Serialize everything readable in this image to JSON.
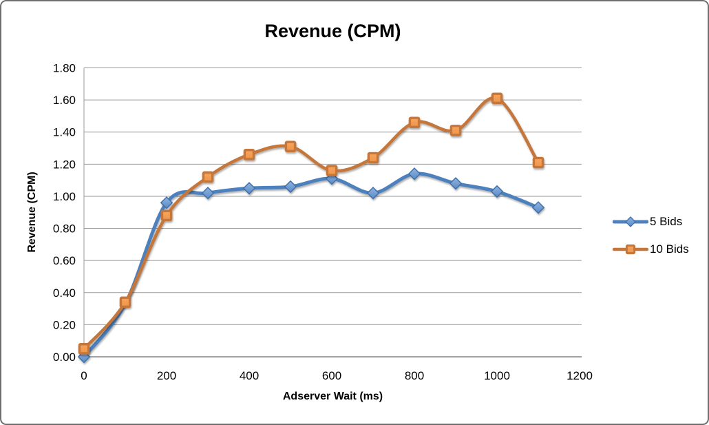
{
  "chart_data": {
    "type": "line",
    "title": "Revenue (CPM)",
    "xlabel": "Adserver Wait (ms)",
    "ylabel": "Revenue (CPM)",
    "x": [
      0,
      100,
      200,
      300,
      400,
      500,
      600,
      700,
      800,
      900,
      1000,
      1100
    ],
    "series": [
      {
        "name": "5 Bids",
        "marker": "diamond",
        "line_color": "#4e81bd",
        "marker_fill_light": "#8fb4e3",
        "marker_fill_dark": "#5b8ac5",
        "marker_stroke": "#3d6da6",
        "line_width": 5,
        "values": [
          0.0,
          0.33,
          0.96,
          1.02,
          1.05,
          1.06,
          1.11,
          1.02,
          1.14,
          1.08,
          1.03,
          0.93
        ]
      },
      {
        "name": "10 Bids",
        "marker": "square",
        "line_color": "#c4763b",
        "marker_fill_light": "#f7a55e",
        "marker_fill_dark": "#ef9549",
        "marker_stroke": "#c4763b",
        "line_width": 4.5,
        "values": [
          0.05,
          0.34,
          0.88,
          1.12,
          1.26,
          1.31,
          1.16,
          1.24,
          1.46,
          1.41,
          1.61,
          1.21
        ]
      }
    ],
    "xlim": [
      0,
      1200
    ],
    "ylim": [
      0.0,
      1.8
    ],
    "x_tick_step": 200,
    "y_tick_step": 0.2,
    "x_tick_labels": [
      "0",
      "200",
      "400",
      "600",
      "800",
      "1000",
      "1200"
    ],
    "y_tick_labels": [
      "0.00",
      "0.20",
      "0.40",
      "0.60",
      "0.80",
      "1.00",
      "1.20",
      "1.40",
      "1.60",
      "1.80"
    ],
    "grid": true,
    "smooth_lines": true,
    "legend_position": "right"
  },
  "colors": {
    "grid_line": "#9a9a9a",
    "axis_line": "#808080",
    "tick_text": "#000000",
    "frame_border": "#6e6e6e",
    "background": "#ffffff"
  }
}
